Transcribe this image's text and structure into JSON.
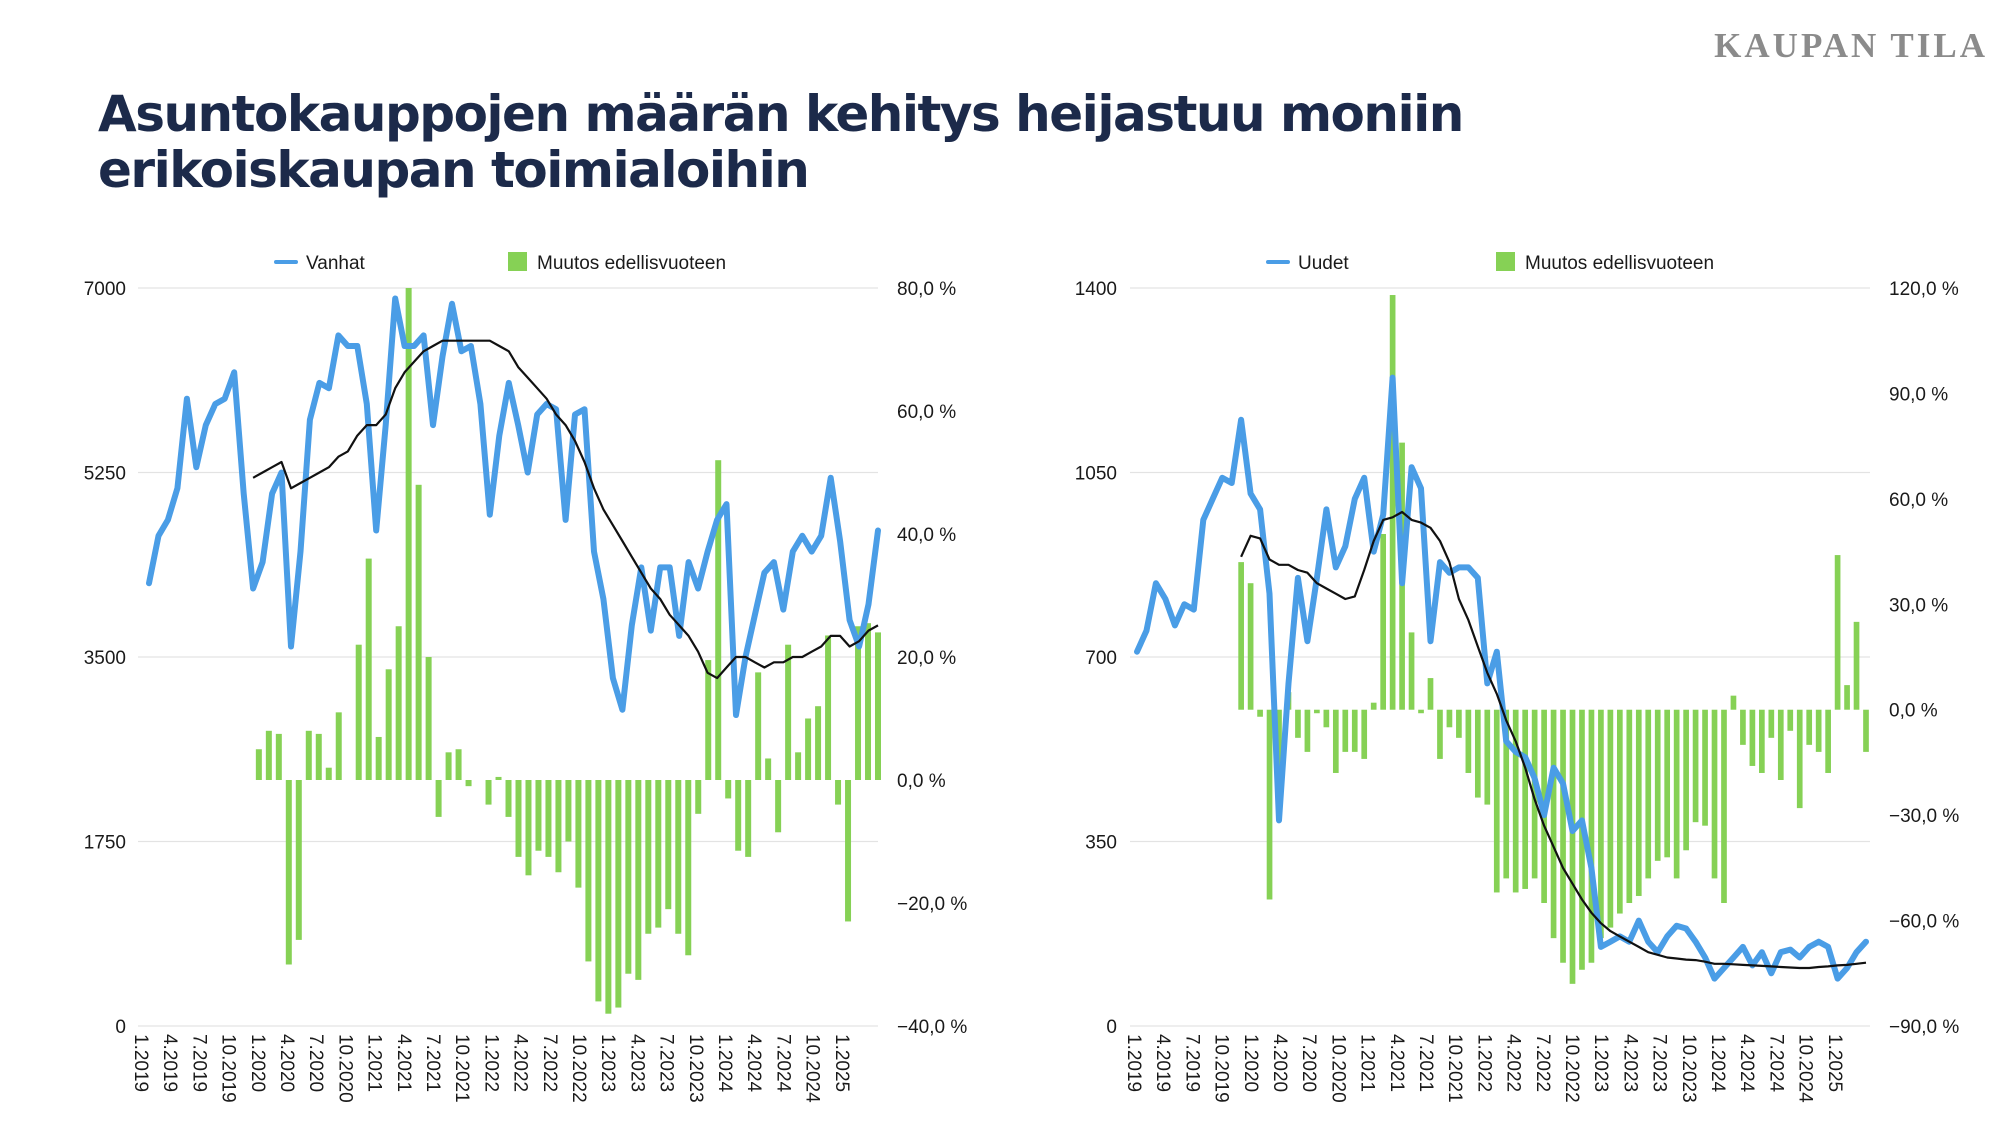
{
  "header": {
    "brand": "KAUPAN TILA",
    "title": "Asuntokauppojen määrän kehitys heijastuu moniin erikoiskaupan toimialoihin"
  },
  "colors": {
    "title": "#1c2a4a",
    "brand": "#8b8b8b",
    "line": "#4a9de6",
    "bar": "#86d155",
    "trend": "#111111",
    "grid": "#e3e3e3"
  },
  "chart_data": [
    {
      "type": "bar+line",
      "legend": {
        "line_label": "Vanhat",
        "bar_label": "Muutos edellisvuoteen"
      },
      "left_axis": {
        "min": 0,
        "max": 7000,
        "ticks": [
          "0",
          "1750",
          "3500",
          "5250",
          "7000"
        ]
      },
      "right_axis": {
        "min": -40,
        "max": 80,
        "ticks": [
          "−40,0 %",
          "−20,0 %",
          "0,0 %",
          "20,0 %",
          "40,0 %",
          "60,0 %",
          "80,0 %"
        ]
      },
      "x_labels": [
        "1.2019",
        "4.2019",
        "7.2019",
        "10.2019",
        "1.2020",
        "4.2020",
        "7.2020",
        "10.2020",
        "1.2021",
        "4.2021",
        "7.2021",
        "10.2021",
        "1.2022",
        "4.2022",
        "7.2022",
        "10.2022",
        "1.2023",
        "4.2023",
        "7.2023",
        "10.2023",
        "1.2024",
        "4.2024",
        "7.2024",
        "10.2024",
        "1.2025"
      ],
      "series_line": {
        "name": "Vanhat",
        "values": [
          4200,
          4650,
          4800,
          5100,
          5950,
          5300,
          5700,
          5900,
          5950,
          6200,
          5050,
          4150,
          4400,
          5050,
          5250,
          3600,
          4500,
          5750,
          6100,
          6050,
          6550,
          6450,
          6450,
          5900,
          4700,
          5700,
          6900,
          6450,
          6450,
          6550,
          5700,
          6350,
          6850,
          6400,
          6450,
          5900,
          4850,
          5600,
          6100,
          5700,
          5250,
          5800,
          5900,
          5850,
          4800,
          5800,
          5850,
          4500,
          4050,
          3300,
          3000,
          3800,
          4350,
          3750,
          4350,
          4350,
          3700,
          4400,
          4150,
          4500,
          4800,
          4950,
          2950,
          3500,
          3900,
          4300,
          4400,
          3950,
          4500,
          4650,
          4500,
          4650,
          5200,
          4600,
          3850,
          3600,
          4000,
          4700
        ],
        "interval_ms": 0
      },
      "series_trend": {
        "name": "moving-average",
        "values": [
          null,
          null,
          null,
          null,
          null,
          null,
          null,
          null,
          null,
          null,
          null,
          5200,
          5250,
          5300,
          5350,
          5100,
          5150,
          5200,
          5250,
          5300,
          5400,
          5450,
          5600,
          5700,
          5700,
          5800,
          6050,
          6200,
          6300,
          6400,
          6450,
          6500,
          6500,
          6500,
          6500,
          6500,
          6500,
          6450,
          6400,
          6250,
          6150,
          6050,
          5950,
          5800,
          5700,
          5550,
          5350,
          5100,
          4900,
          4750,
          4600,
          4450,
          4300,
          4150,
          4050,
          3900,
          3800,
          3700,
          3550,
          3350,
          3300,
          3400,
          3500,
          3500,
          3450,
          3400,
          3450,
          3450,
          3500,
          3500,
          3550,
          3600,
          3700,
          3700,
          3600,
          3650,
          3750,
          3800
        ],
        "interval_ms": 0
      },
      "series_bars": {
        "name": "Muutos edellisvuoteen",
        "values": [
          null,
          null,
          null,
          null,
          null,
          null,
          null,
          null,
          null,
          null,
          null,
          5,
          8,
          7.5,
          -30,
          -26,
          8,
          7.5,
          2,
          11,
          0,
          22,
          36,
          7,
          18,
          25,
          80,
          48,
          20,
          -6,
          4.5,
          5,
          -1,
          0,
          -4,
          0.5,
          -6,
          -12.5,
          -15.5,
          -11.5,
          -12.5,
          -15,
          -10,
          -17.5,
          -29.5,
          -36,
          -38,
          -37,
          -31.5,
          -32.5,
          -25,
          -24,
          -21,
          -25,
          -28.5,
          -5.5,
          19.5,
          52,
          -3,
          -11.5,
          -12.5,
          17.5,
          3.5,
          -8.5,
          22,
          4.5,
          10,
          12,
          23.5,
          -4,
          -23,
          25,
          25.5,
          24
        ],
        "interval_ms": 0
      }
    },
    {
      "type": "bar+line",
      "legend": {
        "line_label": "Uudet",
        "bar_label": "Muutos edellisvuoteen"
      },
      "left_axis": {
        "min": 0,
        "max": 1400,
        "ticks": [
          "0",
          "350",
          "700",
          "1050",
          "1400"
        ]
      },
      "right_axis": {
        "min": -90,
        "max": 120,
        "ticks": [
          "−90,0 %",
          "−60,0 %",
          "−30,0 %",
          "0,0 %",
          "30,0 %",
          "60,0 %",
          "90,0 %",
          "120,0 %"
        ]
      },
      "x_labels": [
        "1.2019",
        "4.2019",
        "7.2019",
        "10.2019",
        "1.2020",
        "4.2020",
        "7.2020",
        "10.2020",
        "1.2021",
        "4.2021",
        "7.2021",
        "10.2021",
        "1.2022",
        "4.2022",
        "7.2022",
        "10.2022",
        "1.2023",
        "4.2023",
        "7.2023",
        "10.2023",
        "1.2024",
        "4.2024",
        "7.2024",
        "10.2024",
        "1.2025"
      ],
      "series_line": {
        "name": "Uudet",
        "values": [
          710,
          750,
          840,
          810,
          760,
          800,
          790,
          960,
          1000,
          1040,
          1030,
          1150,
          1010,
          980,
          820,
          390,
          650,
          850,
          730,
          850,
          980,
          870,
          910,
          1000,
          1040,
          900,
          970,
          1230,
          840,
          1060,
          1020,
          730,
          880,
          860,
          870,
          870,
          850,
          650,
          710,
          540,
          520,
          510,
          470,
          400,
          490,
          460,
          370,
          390,
          300,
          150,
          160,
          170,
          160,
          200,
          160,
          140,
          170,
          190,
          185,
          160,
          130,
          90,
          110,
          130,
          150,
          115,
          140,
          100,
          140,
          145,
          130,
          150,
          160,
          150,
          90,
          110,
          140,
          160
        ],
        "interval_ms": 0
      },
      "series_trend": {
        "name": "moving-average",
        "values": [
          null,
          null,
          null,
          null,
          null,
          null,
          null,
          null,
          null,
          null,
          null,
          890,
          930,
          925,
          885,
          875,
          875,
          865,
          860,
          840,
          830,
          820,
          810,
          815,
          865,
          920,
          960,
          965,
          975,
          960,
          955,
          945,
          920,
          880,
          810,
          770,
          720,
          670,
          630,
          580,
          540,
          490,
          430,
          380,
          340,
          300,
          270,
          240,
          215,
          195,
          180,
          170,
          160,
          150,
          140,
          135,
          130,
          128,
          126,
          125,
          122,
          118,
          118,
          117,
          116,
          115,
          114,
          113,
          112,
          111,
          110,
          110,
          112,
          113,
          115,
          116,
          118,
          120
        ],
        "interval_ms": 0
      },
      "series_bars": {
        "name": "Muutos edellisvuoteen",
        "values": [
          null,
          null,
          null,
          null,
          null,
          null,
          null,
          null,
          null,
          null,
          null,
          42,
          36,
          -2,
          -54,
          -23,
          5,
          -8,
          -12,
          -1,
          -5,
          -18,
          -12,
          -12,
          -14,
          2,
          50,
          118,
          76,
          22,
          -1,
          9,
          -14,
          -5,
          -8,
          -18,
          -25,
          -27,
          -52,
          -48,
          -52,
          -51,
          -48,
          -55,
          -65,
          -72,
          -78,
          -74,
          -72,
          -65,
          -62,
          -58,
          -55,
          -53,
          -48,
          -43,
          -42,
          -48,
          -40,
          -32,
          -33,
          -48,
          -55,
          4,
          -10,
          -16,
          -18,
          -8,
          -20,
          -6,
          -28,
          -10,
          -12,
          -18,
          44,
          7,
          25,
          -12
        ],
        "interval_ms": 0
      }
    }
  ]
}
